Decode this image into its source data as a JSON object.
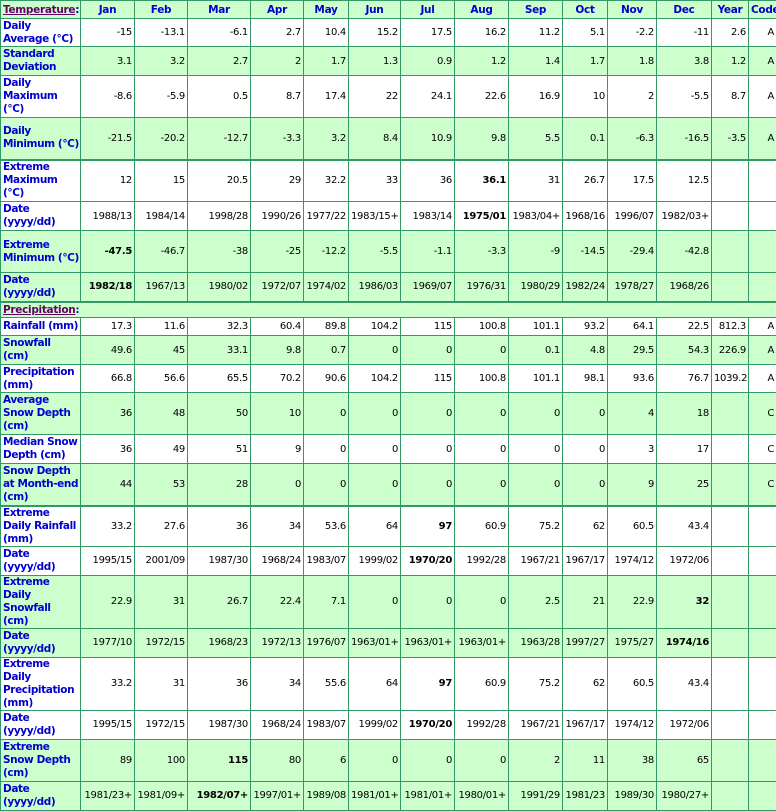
{
  "header": {
    "temperature_label": "Temperature",
    "colon": ":",
    "columns": [
      "Jan",
      "Feb",
      "Mar",
      "Apr",
      "May",
      "Jun",
      "Jul",
      "Aug",
      "Sep",
      "Oct",
      "Nov",
      "Dec",
      "Year",
      "Code"
    ]
  },
  "colors": {
    "row_green": "#ccffcc",
    "border": "#339966",
    "label_blue": "#0000cc",
    "section_purple": "#660066"
  },
  "temperature": [
    {
      "label": "Daily Average (°C)",
      "values": [
        "-15",
        "-13.1",
        "-6.1",
        "2.7",
        "10.4",
        "15.2",
        "17.5",
        "16.2",
        "11.2",
        "5.1",
        "-2.2",
        "-11",
        "2.6",
        "A"
      ],
      "bold": []
    },
    {
      "label": "Standard Deviation",
      "values": [
        "3.1",
        "3.2",
        "2.7",
        "2",
        "1.7",
        "1.3",
        "0.9",
        "1.2",
        "1.4",
        "1.7",
        "1.8",
        "3.8",
        "1.2",
        "A"
      ],
      "bold": []
    },
    {
      "label": "Daily Maximum (°C)",
      "values": [
        "-8.6",
        "-5.9",
        "0.5",
        "8.7",
        "17.4",
        "22",
        "24.1",
        "22.6",
        "16.9",
        "10",
        "2",
        "-5.5",
        "8.7",
        "A"
      ],
      "bold": []
    },
    {
      "label": "Daily Minimum (°C)",
      "values": [
        "-21.5",
        "-20.2",
        "-12.7",
        "-3.3",
        "3.2",
        "8.4",
        "10.9",
        "9.8",
        "5.5",
        "0.1",
        "-6.3",
        "-16.5",
        "-3.5",
        "A"
      ],
      "bold": []
    },
    {
      "label": "Extreme Maximum (°C)",
      "values": [
        "12",
        "15",
        "20.5",
        "29",
        "32.2",
        "33",
        "36",
        "36.1",
        "31",
        "26.7",
        "17.5",
        "12.5",
        "",
        ""
      ],
      "bold": [
        7
      ]
    },
    {
      "label": "Date (yyyy/dd)",
      "values": [
        "1988/13",
        "1984/14",
        "1998/28",
        "1990/26",
        "1977/22",
        "1983/15+",
        "1983/14",
        "1975/01",
        "1983/04+",
        "1968/16",
        "1996/07",
        "1982/03+",
        "",
        ""
      ],
      "bold": [
        7
      ]
    },
    {
      "label": "Extreme Minimum (°C)",
      "values": [
        "-47.5",
        "-46.7",
        "-38",
        "-25",
        "-12.2",
        "-5.5",
        "-1.1",
        "-3.3",
        "-9",
        "-14.5",
        "-29.4",
        "-42.8",
        "",
        ""
      ],
      "bold": [
        0
      ]
    },
    {
      "label": "Date (yyyy/dd)",
      "values": [
        "1982/18",
        "1967/13",
        "1980/02",
        "1972/07",
        "1974/02",
        "1986/03",
        "1969/07",
        "1976/31",
        "1980/29",
        "1982/24",
        "1978/27",
        "1968/26",
        "",
        ""
      ],
      "bold": [
        0
      ]
    }
  ],
  "precipitation_label": "Precipitation",
  "precipitation": [
    {
      "label": "Rainfall (mm)",
      "values": [
        "17.3",
        "11.6",
        "32.3",
        "60.4",
        "89.8",
        "104.2",
        "115",
        "100.8",
        "101.1",
        "93.2",
        "64.1",
        "22.5",
        "812.3",
        "A"
      ],
      "bold": []
    },
    {
      "label": "Snowfall (cm)",
      "values": [
        "49.6",
        "45",
        "33.1",
        "9.8",
        "0.7",
        "0",
        "0",
        "0",
        "0.1",
        "4.8",
        "29.5",
        "54.3",
        "226.9",
        "A"
      ],
      "bold": []
    },
    {
      "label": "Precipitation (mm)",
      "values": [
        "66.8",
        "56.6",
        "65.5",
        "70.2",
        "90.6",
        "104.2",
        "115",
        "100.8",
        "101.1",
        "98.1",
        "93.6",
        "76.7",
        "1039.2",
        "A"
      ],
      "bold": []
    },
    {
      "label": "Average Snow Depth (cm)",
      "values": [
        "36",
        "48",
        "50",
        "10",
        "0",
        "0",
        "0",
        "0",
        "0",
        "0",
        "4",
        "18",
        "",
        "C"
      ],
      "bold": []
    },
    {
      "label": "Median Snow Depth (cm)",
      "values": [
        "36",
        "49",
        "51",
        "9",
        "0",
        "0",
        "0",
        "0",
        "0",
        "0",
        "3",
        "17",
        "",
        "C"
      ],
      "bold": []
    },
    {
      "label": "Snow Depth at Month-end (cm)",
      "values": [
        "44",
        "53",
        "28",
        "0",
        "0",
        "0",
        "0",
        "0",
        "0",
        "0",
        "9",
        "25",
        "",
        "C"
      ],
      "bold": []
    },
    {
      "label": "Extreme Daily Rainfall (mm)",
      "values": [
        "33.2",
        "27.6",
        "36",
        "34",
        "53.6",
        "64",
        "97",
        "60.9",
        "75.2",
        "62",
        "60.5",
        "43.4",
        "",
        ""
      ],
      "bold": [
        6
      ]
    },
    {
      "label": "Date (yyyy/dd)",
      "values": [
        "1995/15",
        "2001/09",
        "1987/30",
        "1968/24",
        "1983/07",
        "1999/02",
        "1970/20",
        "1992/28",
        "1967/21",
        "1967/17",
        "1974/12",
        "1972/06",
        "",
        ""
      ],
      "bold": [
        6
      ]
    },
    {
      "label": "Extreme Daily Snowfall (cm)",
      "values": [
        "22.9",
        "31",
        "26.7",
        "22.4",
        "7.1",
        "0",
        "0",
        "0",
        "2.5",
        "21",
        "22.9",
        "32",
        "",
        ""
      ],
      "bold": [
        11
      ]
    },
    {
      "label": "Date (yyyy/dd)",
      "values": [
        "1977/10",
        "1972/15",
        "1968/23",
        "1972/13",
        "1976/07",
        "1963/01+",
        "1963/01+",
        "1963/01+",
        "1963/28",
        "1997/27",
        "1975/27",
        "1974/16",
        "",
        ""
      ],
      "bold": [
        11
      ]
    },
    {
      "label": "Extreme Daily Precipitation (mm)",
      "values": [
        "33.2",
        "31",
        "36",
        "34",
        "55.6",
        "64",
        "97",
        "60.9",
        "75.2",
        "62",
        "60.5",
        "43.4",
        "",
        ""
      ],
      "bold": [
        6
      ]
    },
    {
      "label": "Date (yyyy/dd)",
      "values": [
        "1995/15",
        "1972/15",
        "1987/30",
        "1968/24",
        "1983/07",
        "1999/02",
        "1970/20",
        "1992/28",
        "1967/21",
        "1967/17",
        "1974/12",
        "1972/06",
        "",
        ""
      ],
      "bold": [
        6
      ]
    },
    {
      "label": "Extreme Snow Depth (cm)",
      "values": [
        "89",
        "100",
        "115",
        "80",
        "6",
        "0",
        "0",
        "0",
        "2",
        "11",
        "38",
        "65",
        "",
        ""
      ],
      "bold": [
        2
      ]
    },
    {
      "label": "Date (yyyy/dd)",
      "values": [
        "1981/23+",
        "1981/09+",
        "1982/07+",
        "1997/01+",
        "1989/08",
        "1981/01+",
        "1981/01+",
        "1980/01+",
        "1991/29",
        "1981/23",
        "1989/30",
        "1980/27+",
        "",
        ""
      ],
      "bold": [
        2
      ]
    }
  ]
}
